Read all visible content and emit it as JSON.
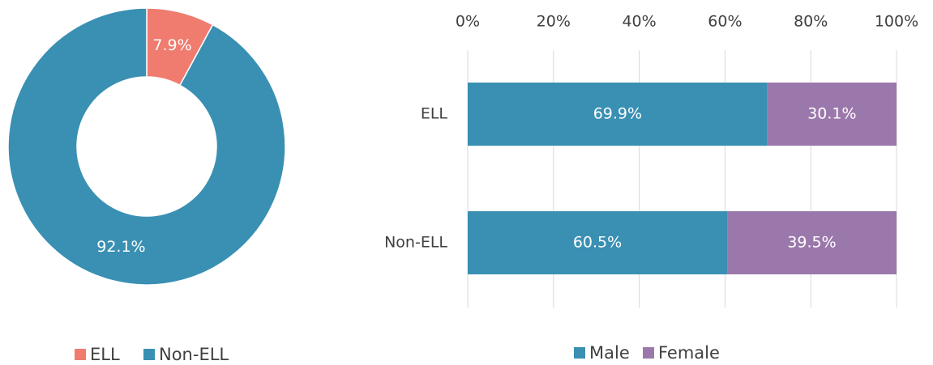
{
  "chart_data": [
    {
      "type": "pie",
      "donut": true,
      "categories": [
        "ELL",
        "Non-ELL"
      ],
      "values": [
        7.9,
        92.1
      ],
      "value_labels": [
        "7.9%",
        "92.1%"
      ],
      "colors": [
        "#f07b6f",
        "#3990b3"
      ],
      "legend": "bottom"
    },
    {
      "type": "bar",
      "orientation": "horizontal",
      "stacked": true,
      "categories": [
        "ELL",
        "Non-ELL"
      ],
      "series": [
        {
          "name": "Male",
          "color": "#3990b3",
          "values": [
            69.9,
            60.5
          ],
          "value_labels": [
            "69.9%",
            "60.5%"
          ]
        },
        {
          "name": "Female",
          "color": "#9b78ab",
          "values": [
            30.1,
            39.5
          ],
          "value_labels": [
            "30.1%",
            "39.5%"
          ]
        }
      ],
      "xlim": [
        0,
        100
      ],
      "xticks": [
        {
          "value": 0,
          "label": "0%"
        },
        {
          "value": 20,
          "label": "20%"
        },
        {
          "value": 40,
          "label": "40%"
        },
        {
          "value": 60,
          "label": "60%"
        },
        {
          "value": 80,
          "label": "80%"
        },
        {
          "value": 100,
          "label": "100%"
        }
      ],
      "grid": true,
      "legend": "bottom"
    }
  ]
}
